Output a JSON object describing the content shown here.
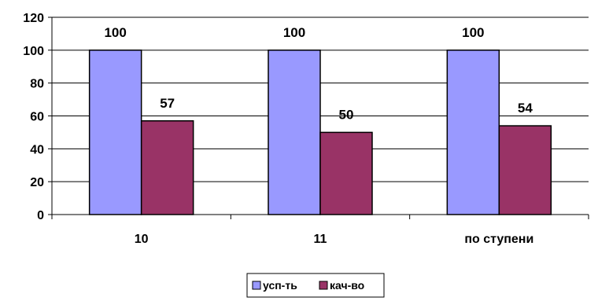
{
  "chart_data": {
    "type": "bar",
    "categories": [
      "10",
      "11",
      "по ступени"
    ],
    "series": [
      {
        "name": "усп-ть",
        "values": [
          100,
          100,
          100
        ],
        "color": "#9999FF"
      },
      {
        "name": "кач-во",
        "values": [
          57,
          50,
          54
        ],
        "color": "#993366"
      }
    ],
    "ylim": [
      0,
      120
    ],
    "yticks": [
      0,
      20,
      40,
      60,
      80,
      100,
      120
    ],
    "grid": true,
    "data_labels": true,
    "legend_position": "bottom",
    "title": "",
    "xlabel": "",
    "ylabel": ""
  }
}
